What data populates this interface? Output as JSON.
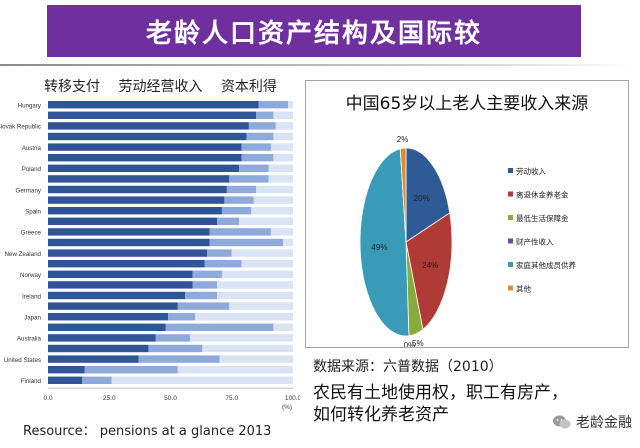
{
  "header": {
    "title": "老龄人口资产结构及国际较"
  },
  "bar_legend": [
    "转移支付",
    "劳动经营收入",
    "资本利得"
  ],
  "pie_title": "中国65岁以上老人主要收入来源",
  "source_note": "数据来源：六普数据（2010）",
  "body_text": "农民有土地使用权，职工有房产，如何转化养老资产",
  "resource": "Resource： pensions at a glance 2013",
  "watermark": "老龄金融",
  "colors": {
    "banner": "#6f2f9f",
    "bar_transfer": "#2f5597",
    "bar_work": "#8eaadb",
    "bar_capital": "#dae3f3",
    "pie": [
      "#2e5a95",
      "#b03a35",
      "#86ac3c",
      "#6b4b9a",
      "#3a9bb8",
      "#e08a2d"
    ]
  },
  "chart_data": [
    {
      "type": "bar",
      "orientation": "horizontal",
      "stacked": true,
      "categories": [
        "Hungary",
        "",
        "Slovak Republic",
        "",
        "Austria",
        "",
        "Poland",
        "",
        "Germany",
        "",
        "Spain",
        "",
        "Greece",
        "",
        "New Zealand",
        "",
        "Norway",
        "",
        "Ireland",
        "",
        "Japan",
        "",
        "Australia",
        "",
        "United States",
        "",
        "Finland"
      ],
      "series": [
        {
          "name": "转移支付",
          "values": [
            86,
            85,
            82,
            81,
            79,
            79,
            78,
            74,
            73,
            72,
            71,
            69,
            66,
            66,
            65,
            64,
            59,
            59,
            56,
            53,
            49,
            48,
            44,
            41,
            37,
            15,
            14
          ]
        },
        {
          "name": "劳动经营收入",
          "values": [
            12,
            7,
            11,
            11,
            12,
            13,
            12,
            16,
            12,
            12,
            12,
            9,
            25,
            30,
            10,
            15,
            12,
            10,
            13,
            21,
            11,
            44,
            14,
            22,
            33,
            38,
            12
          ]
        },
        {
          "name": "资本利得",
          "values": [
            2,
            8,
            7,
            8,
            9,
            8,
            10,
            10,
            15,
            16,
            17,
            22,
            9,
            4,
            25,
            21,
            29,
            31,
            31,
            26,
            40,
            8,
            42,
            37,
            30,
            47,
            74
          ]
        }
      ],
      "xticks": [
        "0.0",
        "25.0",
        "50.0",
        "75.0",
        "100.0"
      ],
      "xlim": [
        0,
        100
      ],
      "xlabel": "(%)",
      "grid": false
    },
    {
      "type": "pie",
      "labels": [
        "劳动收入",
        "离退休金养老金",
        "最低生活保障金",
        "财产性收入",
        "家庭其他成员供养",
        "其他"
      ],
      "values": [
        20,
        24,
        5,
        0,
        49,
        2
      ],
      "data_labels": [
        "20%",
        "24%",
        "5%",
        "0%",
        "49%",
        "2%"
      ],
      "legend_position": "right"
    }
  ]
}
